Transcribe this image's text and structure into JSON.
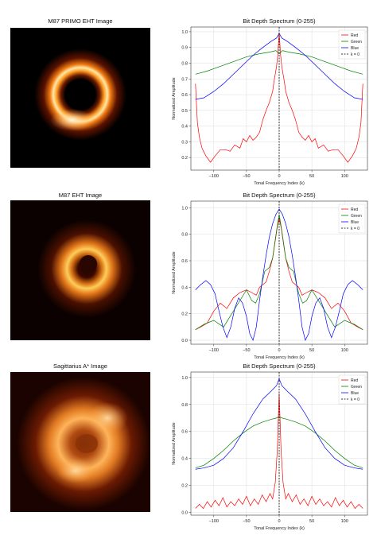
{
  "panels": [
    {
      "image_title": "M87 PRIMO EHT Image",
      "image_style": {
        "bg": "#000000",
        "core": "#1a0400",
        "ring": [
          "#fff5d0",
          "#ffae33",
          "#c65408",
          "#4a1000"
        ]
      },
      "chart_title": "Bit Depth Spectrum (0-255)"
    },
    {
      "image_title": "M87 EHT Image",
      "image_style": {
        "bg": "#0a0100",
        "core": "#3a0b00",
        "ring": [
          "#ffd56a",
          "#f38a1b",
          "#8c2e04",
          "#2a0700"
        ]
      },
      "chart_title": "Bit Depth Spectrum (0-255)"
    },
    {
      "image_title": "Sagittarius A* Image",
      "image_style": {
        "bg": "#1a0300",
        "core": "#7a2804",
        "ring": [
          "#ffd08a",
          "#e07a22",
          "#a03c08",
          "#4a0e00"
        ]
      },
      "chart_title": "Bit Depth Spectrum (0-255)"
    }
  ],
  "chart_data": [
    {
      "type": "line",
      "title": "Bit Depth Spectrum (0-255)",
      "xlabel": "Tonal Frequency Index (k)",
      "ylabel": "Normalized Amplitude",
      "xlim": [
        -135,
        135
      ],
      "ylim": [
        0.12,
        1.03
      ],
      "xticks": [
        -100,
        -50,
        0,
        50,
        100
      ],
      "yticks": [
        0.2,
        0.3,
        0.4,
        0.5,
        0.6,
        0.7,
        0.8,
        0.9,
        1.0
      ],
      "grid": true,
      "legend": "top-right",
      "vline_label": "k = 0",
      "series": [
        {
          "name": "Red",
          "color": "#ff0000",
          "x": [
            -128,
            -125,
            -122,
            -118,
            -112,
            -105,
            -98,
            -90,
            -82,
            -75,
            -68,
            -60,
            -55,
            -50,
            -45,
            -40,
            -35,
            -30,
            -25,
            -20,
            -15,
            -10,
            -8,
            -6,
            -4,
            -2,
            -1,
            0,
            1,
            2,
            4,
            6,
            8,
            10,
            15,
            20,
            25,
            30,
            35,
            40,
            45,
            50,
            55,
            60,
            68,
            75,
            82,
            90,
            98,
            105,
            112,
            118,
            122,
            125,
            128
          ],
          "y": [
            0.67,
            0.42,
            0.33,
            0.26,
            0.21,
            0.17,
            0.21,
            0.25,
            0.25,
            0.24,
            0.28,
            0.26,
            0.32,
            0.3,
            0.34,
            0.31,
            0.33,
            0.36,
            0.44,
            0.5,
            0.55,
            0.62,
            0.68,
            0.73,
            0.78,
            0.86,
            0.93,
            0.99,
            0.93,
            0.86,
            0.78,
            0.73,
            0.68,
            0.62,
            0.55,
            0.5,
            0.44,
            0.36,
            0.33,
            0.31,
            0.34,
            0.3,
            0.32,
            0.26,
            0.28,
            0.24,
            0.25,
            0.25,
            0.21,
            0.17,
            0.21,
            0.26,
            0.33,
            0.42,
            0.67
          ]
        },
        {
          "name": "Green",
          "color": "#008000",
          "x": [
            -128,
            -110,
            -90,
            -70,
            -50,
            -30,
            -15,
            -5,
            0,
            5,
            15,
            30,
            50,
            70,
            90,
            110,
            128
          ],
          "y": [
            0.73,
            0.75,
            0.78,
            0.81,
            0.84,
            0.86,
            0.87,
            0.88,
            0.86,
            0.88,
            0.87,
            0.86,
            0.84,
            0.81,
            0.78,
            0.75,
            0.73
          ]
        },
        {
          "name": "Blue",
          "color": "#0000ff",
          "x": [
            -128,
            -115,
            -100,
            -85,
            -70,
            -55,
            -40,
            -25,
            -12,
            -4,
            0,
            4,
            12,
            25,
            40,
            55,
            70,
            85,
            100,
            115,
            128
          ],
          "y": [
            0.57,
            0.58,
            0.62,
            0.67,
            0.73,
            0.79,
            0.85,
            0.9,
            0.94,
            0.96,
            0.99,
            0.96,
            0.94,
            0.9,
            0.85,
            0.79,
            0.73,
            0.67,
            0.62,
            0.58,
            0.57
          ]
        }
      ]
    },
    {
      "type": "line",
      "title": "Bit Depth Spectrum (0-255)",
      "xlabel": "Tonal Frequency Index (k)",
      "ylabel": "Normalized Amplitude",
      "xlim": [
        -135,
        135
      ],
      "ylim": [
        -0.03,
        1.05
      ],
      "xticks": [
        -100,
        -50,
        0,
        50,
        100
      ],
      "yticks": [
        0.0,
        0.2,
        0.4,
        0.6,
        0.8,
        1.0
      ],
      "grid": true,
      "legend": "top-right",
      "vline_label": "k = 0",
      "series": [
        {
          "name": "Red",
          "color": "#ff0000",
          "x": [
            -128,
            -120,
            -110,
            -100,
            -90,
            -80,
            -70,
            -60,
            -50,
            -42,
            -35,
            -30,
            -25,
            -20,
            -15,
            -10,
            -6,
            -3,
            0,
            3,
            6,
            10,
            15,
            20,
            25,
            30,
            35,
            42,
            50,
            60,
            70,
            80,
            90,
            100,
            110,
            120,
            128
          ],
          "y": [
            0.08,
            0.1,
            0.13,
            0.22,
            0.28,
            0.24,
            0.32,
            0.36,
            0.38,
            0.36,
            0.34,
            0.4,
            0.42,
            0.44,
            0.52,
            0.62,
            0.75,
            0.85,
            0.92,
            0.85,
            0.75,
            0.62,
            0.52,
            0.44,
            0.42,
            0.4,
            0.34,
            0.36,
            0.38,
            0.36,
            0.32,
            0.24,
            0.28,
            0.22,
            0.13,
            0.1,
            0.08
          ]
        },
        {
          "name": "Green",
          "color": "#008000",
          "x": [
            -128,
            -115,
            -100,
            -85,
            -70,
            -60,
            -50,
            -42,
            -36,
            -30,
            -22,
            -15,
            -10,
            -6,
            -3,
            0,
            3,
            6,
            10,
            15,
            22,
            30,
            36,
            42,
            50,
            60,
            70,
            85,
            100,
            115,
            128
          ],
          "y": [
            0.08,
            0.12,
            0.15,
            0.1,
            0.22,
            0.3,
            0.38,
            0.3,
            0.28,
            0.35,
            0.52,
            0.55,
            0.62,
            0.76,
            0.86,
            0.95,
            0.86,
            0.76,
            0.62,
            0.55,
            0.52,
            0.35,
            0.28,
            0.3,
            0.38,
            0.3,
            0.22,
            0.1,
            0.15,
            0.12,
            0.08
          ]
        },
        {
          "name": "Blue",
          "color": "#0000ff",
          "x": [
            -128,
            -120,
            -112,
            -105,
            -98,
            -92,
            -86,
            -80,
            -74,
            -68,
            -62,
            -56,
            -50,
            -45,
            -40,
            -35,
            -30,
            -25,
            -20,
            -15,
            -10,
            -5,
            0,
            5,
            10,
            15,
            20,
            25,
            30,
            35,
            40,
            45,
            50,
            56,
            62,
            68,
            74,
            80,
            86,
            92,
            98,
            105,
            112,
            120,
            128
          ],
          "y": [
            0.38,
            0.42,
            0.45,
            0.42,
            0.35,
            0.22,
            0.1,
            0.02,
            0.1,
            0.24,
            0.32,
            0.28,
            0.18,
            0.05,
            0.0,
            0.1,
            0.3,
            0.48,
            0.64,
            0.78,
            0.88,
            0.95,
            0.99,
            0.95,
            0.88,
            0.78,
            0.64,
            0.48,
            0.3,
            0.1,
            0.0,
            0.05,
            0.18,
            0.28,
            0.32,
            0.24,
            0.1,
            0.02,
            0.1,
            0.22,
            0.35,
            0.42,
            0.45,
            0.42,
            0.38
          ]
        }
      ]
    },
    {
      "type": "line",
      "title": "Bit Depth Spectrum (0-255)",
      "xlabel": "Tonal Frequency Index (k)",
      "ylabel": "Normalized Amplitude",
      "xlim": [
        -135,
        135
      ],
      "ylim": [
        -0.02,
        1.04
      ],
      "xticks": [
        -100,
        -50,
        0,
        50,
        100
      ],
      "yticks": [
        0.0,
        0.2,
        0.4,
        0.6,
        0.8,
        1.0
      ],
      "grid": true,
      "legend": "top-right",
      "vline_label": "k = 0",
      "series": [
        {
          "name": "Red",
          "color": "#ff0000",
          "x": [
            -128,
            -122,
            -116,
            -110,
            -104,
            -98,
            -92,
            -86,
            -80,
            -74,
            -68,
            -62,
            -56,
            -50,
            -44,
            -38,
            -32,
            -26,
            -20,
            -14,
            -10,
            -6,
            -3,
            0,
            3,
            6,
            10,
            14,
            20,
            26,
            32,
            38,
            44,
            50,
            56,
            62,
            68,
            74,
            80,
            86,
            92,
            98,
            104,
            110,
            116,
            122,
            128
          ],
          "y": [
            0.03,
            0.06,
            0.03,
            0.08,
            0.04,
            0.09,
            0.05,
            0.11,
            0.04,
            0.08,
            0.05,
            0.1,
            0.06,
            0.12,
            0.05,
            0.1,
            0.06,
            0.13,
            0.08,
            0.14,
            0.1,
            0.22,
            0.45,
            0.88,
            0.45,
            0.22,
            0.1,
            0.14,
            0.08,
            0.13,
            0.06,
            0.1,
            0.05,
            0.12,
            0.06,
            0.1,
            0.05,
            0.08,
            0.04,
            0.11,
            0.05,
            0.09,
            0.04,
            0.08,
            0.03,
            0.06,
            0.03
          ]
        },
        {
          "name": "Green",
          "color": "#008000",
          "x": [
            -128,
            -115,
            -100,
            -85,
            -70,
            -55,
            -40,
            -25,
            -12,
            -4,
            0,
            4,
            12,
            25,
            40,
            55,
            70,
            85,
            100,
            115,
            128
          ],
          "y": [
            0.33,
            0.35,
            0.4,
            0.46,
            0.53,
            0.59,
            0.64,
            0.67,
            0.69,
            0.7,
            0.71,
            0.7,
            0.69,
            0.67,
            0.64,
            0.59,
            0.53,
            0.46,
            0.4,
            0.35,
            0.33
          ]
        },
        {
          "name": "Blue",
          "color": "#0000ff",
          "x": [
            -128,
            -115,
            -100,
            -85,
            -70,
            -55,
            -40,
            -25,
            -12,
            -4,
            0,
            4,
            12,
            25,
            40,
            55,
            70,
            85,
            100,
            115,
            128
          ],
          "y": [
            0.32,
            0.33,
            0.35,
            0.4,
            0.48,
            0.6,
            0.73,
            0.84,
            0.9,
            0.94,
            0.99,
            0.94,
            0.9,
            0.84,
            0.73,
            0.6,
            0.48,
            0.4,
            0.35,
            0.33,
            0.32
          ]
        }
      ]
    }
  ]
}
